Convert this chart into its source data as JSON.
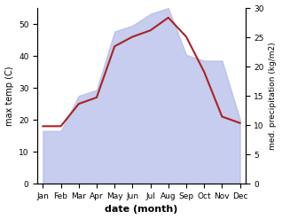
{
  "months": [
    "Jan",
    "Feb",
    "Mar",
    "Apr",
    "May",
    "Jun",
    "Jul",
    "Aug",
    "Sep",
    "Oct",
    "Nov",
    "Dec"
  ],
  "temperature": [
    18,
    18,
    25,
    27,
    43,
    46,
    48,
    52,
    46,
    35,
    21,
    19
  ],
  "precipitation": [
    9,
    9,
    15,
    16,
    26,
    27,
    29,
    30,
    22,
    21,
    21,
    11
  ],
  "temp_color": "#aa2222",
  "precip_color": "#b0b8e8",
  "precip_alpha": 0.7,
  "title": "",
  "xlabel": "date (month)",
  "ylabel_left": "max temp (C)",
  "ylabel_right": "med. precipitation (kg/m2)",
  "ylim_left": [
    0,
    55
  ],
  "ylim_right": [
    0,
    30
  ],
  "yticks_left": [
    0,
    10,
    20,
    30,
    40,
    50
  ],
  "yticks_right": [
    0,
    5,
    10,
    15,
    20,
    25,
    30
  ],
  "background_color": "#ffffff"
}
